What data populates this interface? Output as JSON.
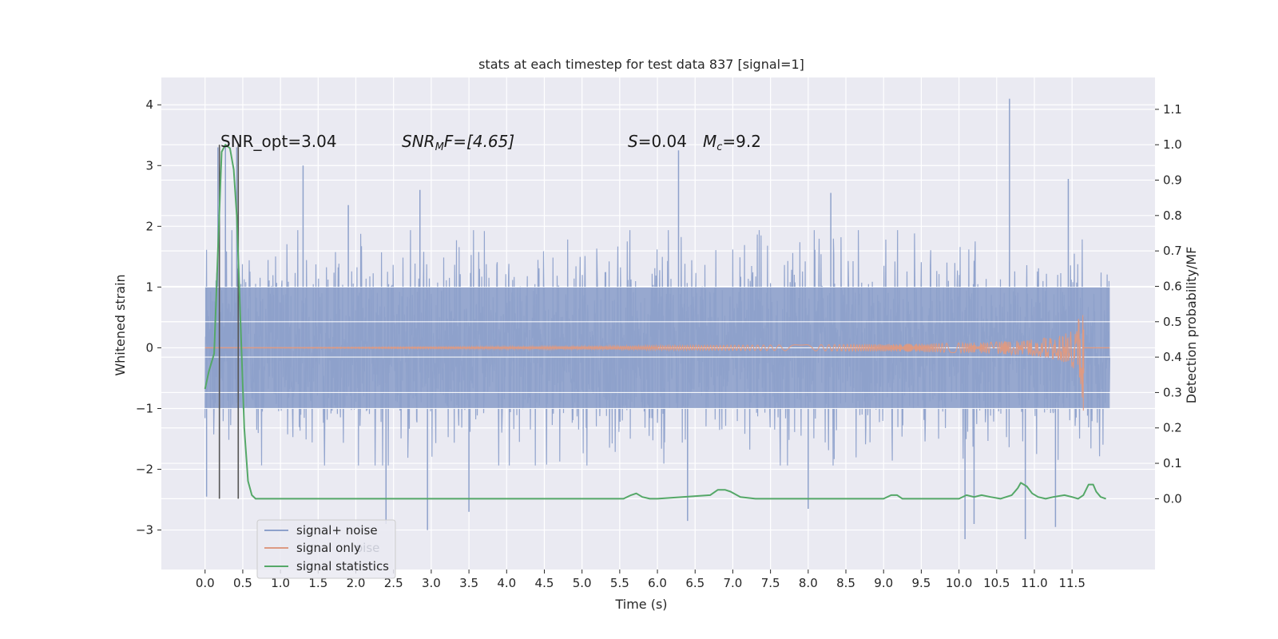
{
  "chart_data": {
    "type": "line",
    "title": "stats at each timestep for test data 837 [signal=1]",
    "xlabel": "Time (s)",
    "ylabel_left": "Whitened strain",
    "ylabel_right": "Detection probability/MF",
    "xlim": [
      -0.58,
      12.6
    ],
    "ylim_left": [
      -3.65,
      4.45
    ],
    "ylim_right": [
      -0.2,
      1.19
    ],
    "x_ticks": [
      0.0,
      0.5,
      1.0,
      1.5,
      2.0,
      2.5,
      3.0,
      3.5,
      4.0,
      4.5,
      5.0,
      5.5,
      6.0,
      6.5,
      7.0,
      7.5,
      8.0,
      8.5,
      9.0,
      9.5,
      10.0,
      10.5,
      11.0,
      11.5
    ],
    "x_tick_labels": [
      "0.0",
      "0.5",
      "1.0",
      "1.5",
      "2.0",
      "2.5",
      "3.0",
      "3.5",
      "4.0",
      "4.5",
      "5.0",
      "5.5",
      "6.0",
      "6.5",
      "7.0",
      "7.5",
      "8.0",
      "8.5",
      "9.0",
      "9.5",
      "10.0",
      "10.5",
      "11.0",
      "11.5"
    ],
    "y_left_ticks": [
      -3,
      -2,
      -1,
      0,
      1,
      2,
      3,
      4
    ],
    "y_left_tick_labels": [
      "−3",
      "−2",
      "−1",
      "0",
      "1",
      "2",
      "3",
      "4"
    ],
    "y_right_ticks": [
      0.0,
      0.1,
      0.2,
      0.3,
      0.4,
      0.5,
      0.6,
      0.7,
      0.8,
      0.9,
      1.0,
      1.1
    ],
    "y_right_tick_labels": [
      "0.0",
      "0.1",
      "0.2",
      "0.3",
      "0.4",
      "0.5",
      "0.6",
      "0.7",
      "0.8",
      "0.9",
      "1.0",
      "1.1"
    ],
    "grid": true,
    "legend_position": "lower-left",
    "legend": [
      "signal+ noise",
      "signal only",
      "signal statistics"
    ],
    "legend_ghost_text": "oise",
    "annotations": {
      "snr_opt": "SNR_opt=3.04",
      "snr_mf_main": "SNR",
      "snr_mf_sub": "M",
      "snr_mf_rest": "F=[4.65]",
      "s_main": "S",
      "s_rest": "=0.04",
      "mc_main": "M",
      "mc_sub": "c",
      "mc_rest": "=9.2"
    },
    "series": [
      {
        "name": "signal+ noise",
        "color": "#8ea1cb",
        "axis": "left",
        "x_range": [
          0.0,
          12.0
        ],
        "typical_abs_max": 1.55,
        "spikes": [
          {
            "x": 0.17,
            "y": 3.3
          },
          {
            "x": 0.27,
            "y": 3.3
          },
          {
            "x": 0.42,
            "y": 3.3
          },
          {
            "x": 1.3,
            "y": 3.0
          },
          {
            "x": 6.28,
            "y": 3.25
          },
          {
            "x": 10.67,
            "y": 4.1
          },
          {
            "x": 11.45,
            "y": 2.78
          },
          {
            "x": 10.08,
            "y": -3.15
          },
          {
            "x": 10.88,
            "y": -3.15
          },
          {
            "x": 6.4,
            "y": -2.85
          },
          {
            "x": 3.5,
            "y": -2.7
          },
          {
            "x": 2.95,
            "y": -3.0
          },
          {
            "x": 2.4,
            "y": -2.9
          },
          {
            "x": 10.2,
            "y": -2.9
          },
          {
            "x": 11.28,
            "y": -2.95
          },
          {
            "x": 0.02,
            "y": -2.45
          },
          {
            "x": 8.0,
            "y": -2.65
          },
          {
            "x": 2.85,
            "y": 2.6
          },
          {
            "x": 1.9,
            "y": 2.35
          },
          {
            "x": 8.3,
            "y": 2.55
          }
        ]
      },
      {
        "name": "signal only",
        "color": "#dd9a83",
        "axis": "left",
        "x_range": [
          0.0,
          12.0
        ],
        "chirp_end": 11.65,
        "peak_amplitude": [
          0.3,
          -0.42
        ]
      },
      {
        "name": "signal statistics",
        "color": "#55a868",
        "axis": "right",
        "x": [
          0.0,
          0.05,
          0.12,
          0.17,
          0.22,
          0.27,
          0.33,
          0.38,
          0.42,
          0.47,
          0.52,
          0.57,
          0.62,
          0.67,
          0.72,
          0.8,
          5.55,
          5.65,
          5.72,
          5.8,
          5.9,
          6.0,
          6.7,
          6.8,
          6.9,
          6.97,
          7.1,
          7.3,
          9.0,
          9.1,
          9.18,
          9.25,
          9.35,
          10.0,
          10.1,
          10.2,
          10.3,
          10.42,
          10.55,
          10.7,
          10.78,
          10.82,
          10.9,
          10.97,
          11.05,
          11.15,
          11.25,
          11.4,
          11.5,
          11.58,
          11.65,
          11.72,
          11.78,
          11.82,
          11.88,
          11.95
        ],
        "y": [
          0.31,
          0.36,
          0.41,
          0.7,
          0.98,
          1.0,
          0.99,
          0.93,
          0.8,
          0.5,
          0.2,
          0.05,
          0.01,
          0.0,
          0.0,
          0.0,
          0.0,
          0.01,
          0.015,
          0.005,
          0.0,
          0.0,
          0.01,
          0.025,
          0.025,
          0.02,
          0.005,
          0.0,
          0.0,
          0.01,
          0.01,
          0.0,
          0.0,
          0.0,
          0.01,
          0.005,
          0.01,
          0.005,
          0.0,
          0.01,
          0.03,
          0.045,
          0.035,
          0.015,
          0.005,
          0.0,
          0.005,
          0.01,
          0.005,
          0.0,
          0.01,
          0.04,
          0.04,
          0.02,
          0.005,
          0.0
        ]
      }
    ],
    "vertical_lines": [
      0.19,
      0.44
    ]
  }
}
